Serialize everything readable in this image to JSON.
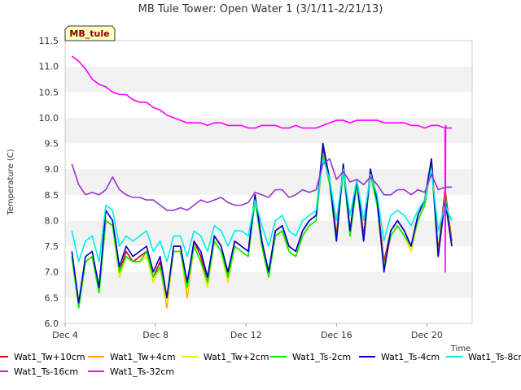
{
  "chart_data": {
    "type": "line",
    "title": "MB Tule Tower: Open Water 1 (3/1/11-2/21/13)",
    "xlabel": "Time",
    "ylabel": "Temperature (C)",
    "badge": "MB_tule",
    "xlim": [
      4,
      22
    ],
    "ylim": [
      6.0,
      11.5
    ],
    "x_ticks": [
      4,
      8,
      12,
      16,
      20
    ],
    "x_tick_labels": [
      "Dec 4",
      "Dec 8",
      "Dec 12",
      "Dec 16",
      "Dec 20"
    ],
    "y_ticks": [
      6.0,
      6.5,
      7.0,
      7.5,
      8.0,
      8.5,
      9.0,
      9.5,
      10.0,
      10.5,
      11.0,
      11.5
    ],
    "y_tick_labels": [
      "6.0",
      "6.5",
      "7.0",
      "7.5",
      "8.0",
      "8.5",
      "9.0",
      "9.5",
      "10.0",
      "10.5",
      "11.0",
      "11.5"
    ],
    "legend_position": "bottom",
    "series": [
      {
        "name": "Wat1_Tw+10cm",
        "color": "#dd0000",
        "x": [
          4.3,
          4.6,
          4.9,
          5.2,
          5.5,
          5.8,
          6.1,
          6.4,
          6.7,
          7.0,
          7.3,
          7.6,
          7.9,
          8.2,
          8.5,
          8.8,
          9.1,
          9.4,
          9.7,
          10.0,
          10.3,
          10.6,
          10.9,
          11.2,
          11.5,
          11.8,
          12.1,
          12.4,
          12.7,
          13.0,
          13.3,
          13.6,
          13.9,
          14.2,
          14.5,
          14.8,
          15.1,
          15.4,
          15.7,
          16.0,
          16.3,
          16.6,
          16.9,
          17.2,
          17.5,
          17.8,
          18.1,
          18.4,
          18.7,
          19.0,
          19.3,
          19.6,
          19.9,
          20.2,
          20.5,
          20.8,
          21.1
        ],
        "values": [
          7.3,
          6.4,
          7.2,
          7.3,
          6.6,
          8.0,
          7.9,
          7.0,
          7.4,
          7.2,
          7.3,
          7.4,
          6.9,
          7.2,
          6.4,
          7.5,
          7.5,
          6.6,
          7.6,
          7.3,
          6.8,
          7.7,
          7.5,
          6.9,
          7.6,
          7.5,
          7.4,
          8.5,
          7.6,
          7.0,
          7.8,
          7.9,
          7.5,
          7.4,
          7.8,
          8.0,
          8.1,
          9.4,
          8.8,
          7.7,
          9.1,
          7.8,
          8.8,
          7.7,
          9.0,
          8.4,
          7.2,
          7.8,
          8.0,
          7.8,
          7.5,
          8.1,
          8.4,
          9.2,
          7.4,
          8.6,
          7.6
        ]
      },
      {
        "name": "Wat1_Tw+4cm",
        "color": "#ffa500",
        "x": [
          4.3,
          4.6,
          4.9,
          5.2,
          5.5,
          5.8,
          6.1,
          6.4,
          6.7,
          7.0,
          7.3,
          7.6,
          7.9,
          8.2,
          8.5,
          8.8,
          9.1,
          9.4,
          9.7,
          10.0,
          10.3,
          10.6,
          10.9,
          11.2,
          11.5,
          11.8,
          12.1,
          12.4,
          12.7,
          13.0,
          13.3,
          13.6,
          13.9,
          14.2,
          14.5,
          14.8,
          15.1,
          15.4,
          15.7,
          16.0,
          16.3,
          16.6,
          16.9,
          17.2,
          17.5,
          17.8,
          18.1,
          18.4,
          18.7,
          19.0,
          19.3,
          19.6,
          19.9,
          20.2,
          20.5,
          20.8,
          21.1
        ],
        "values": [
          7.3,
          6.3,
          7.2,
          7.3,
          6.6,
          8.0,
          7.9,
          6.9,
          7.3,
          7.2,
          7.2,
          7.3,
          6.8,
          7.1,
          6.3,
          7.4,
          7.4,
          6.5,
          7.5,
          7.2,
          6.7,
          7.6,
          7.4,
          6.8,
          7.5,
          7.4,
          7.3,
          8.4,
          7.5,
          6.9,
          7.7,
          7.8,
          7.4,
          7.3,
          7.7,
          7.9,
          8.0,
          9.3,
          8.7,
          7.6,
          9.0,
          7.7,
          8.7,
          7.6,
          8.9,
          8.3,
          7.1,
          7.7,
          7.9,
          7.7,
          7.4,
          8.0,
          8.3,
          9.1,
          7.3,
          8.5,
          7.5
        ]
      },
      {
        "name": "Wat1_Tw+2cm",
        "color": "#eeee00",
        "x": [
          4.3,
          4.6,
          4.9,
          5.2,
          5.5,
          5.8,
          6.1,
          6.4,
          6.7,
          7.0,
          7.3,
          7.6,
          7.9,
          8.2,
          8.5,
          8.8,
          9.1,
          9.4,
          9.7,
          10.0,
          10.3,
          10.6,
          10.9,
          11.2,
          11.5,
          11.8,
          12.1,
          12.4,
          12.7,
          13.0,
          13.3,
          13.6,
          13.9,
          14.2,
          14.5,
          14.8,
          15.1,
          15.4,
          15.7,
          16.0,
          16.3,
          16.6,
          16.9,
          17.2,
          17.5,
          17.8,
          18.1,
          18.4,
          18.7,
          19.0,
          19.3,
          19.6,
          19.9,
          20.2,
          20.5,
          20.8,
          21.1
        ],
        "values": [
          7.3,
          6.3,
          7.2,
          7.3,
          6.6,
          8.0,
          7.9,
          6.9,
          7.3,
          7.2,
          7.2,
          7.3,
          6.8,
          7.1,
          6.4,
          7.4,
          7.4,
          6.6,
          7.5,
          7.2,
          6.7,
          7.6,
          7.4,
          6.8,
          7.5,
          7.4,
          7.3,
          8.4,
          7.5,
          6.9,
          7.7,
          7.8,
          7.4,
          7.3,
          7.7,
          7.9,
          8.0,
          9.3,
          8.7,
          7.6,
          9.0,
          7.7,
          8.7,
          7.6,
          8.9,
          8.3,
          7.1,
          7.7,
          7.9,
          7.7,
          7.4,
          8.0,
          8.3,
          9.1,
          7.3,
          8.5,
          7.5
        ]
      },
      {
        "name": "Wat1_Ts-2cm",
        "color": "#00ee00",
        "x": [
          4.3,
          4.6,
          4.9,
          5.2,
          5.5,
          5.8,
          6.1,
          6.4,
          6.7,
          7.0,
          7.3,
          7.6,
          7.9,
          8.2,
          8.5,
          8.8,
          9.1,
          9.4,
          9.7,
          10.0,
          10.3,
          10.6,
          10.9,
          11.2,
          11.5,
          11.8,
          12.1,
          12.4,
          12.7,
          13.0,
          13.3,
          13.6,
          13.9,
          14.2,
          14.5,
          14.8,
          15.1,
          15.4,
          15.7,
          16.0,
          16.3,
          16.6,
          16.9,
          17.2,
          17.5,
          17.8,
          18.1,
          18.4,
          18.7,
          19.0,
          19.3,
          19.6,
          19.9,
          20.2,
          20.5,
          20.8,
          21.1
        ],
        "values": [
          7.3,
          6.3,
          7.2,
          7.3,
          6.6,
          8.0,
          7.9,
          7.0,
          7.3,
          7.2,
          7.2,
          7.4,
          6.9,
          7.1,
          6.5,
          7.4,
          7.4,
          6.7,
          7.5,
          7.2,
          6.8,
          7.6,
          7.4,
          6.9,
          7.5,
          7.4,
          7.3,
          8.4,
          7.5,
          6.9,
          7.7,
          7.8,
          7.4,
          7.3,
          7.7,
          7.9,
          8.0,
          9.3,
          8.7,
          7.6,
          9.0,
          7.7,
          8.7,
          7.6,
          8.9,
          8.3,
          7.1,
          7.7,
          7.9,
          7.7,
          7.5,
          8.0,
          8.3,
          9.1,
          7.3,
          8.5,
          7.5
        ]
      },
      {
        "name": "Wat1_Ts-4cm",
        "color": "#0000cc",
        "x": [
          4.3,
          4.6,
          4.9,
          5.2,
          5.5,
          5.8,
          6.1,
          6.4,
          6.7,
          7.0,
          7.3,
          7.6,
          7.9,
          8.2,
          8.5,
          8.8,
          9.1,
          9.4,
          9.7,
          10.0,
          10.3,
          10.6,
          10.9,
          11.2,
          11.5,
          11.8,
          12.1,
          12.4,
          12.7,
          13.0,
          13.3,
          13.6,
          13.9,
          14.2,
          14.5,
          14.8,
          15.1,
          15.4,
          15.7,
          16.0,
          16.3,
          16.6,
          16.9,
          17.2,
          17.5,
          17.8,
          18.1,
          18.4,
          18.7,
          19.0,
          19.3,
          19.6,
          19.9,
          20.2,
          20.5,
          20.8,
          21.1
        ],
        "values": [
          7.4,
          6.4,
          7.3,
          7.4,
          6.7,
          8.2,
          8.0,
          7.1,
          7.5,
          7.3,
          7.4,
          7.5,
          7.0,
          7.3,
          6.5,
          7.5,
          7.5,
          6.8,
          7.6,
          7.4,
          6.9,
          7.7,
          7.5,
          7.0,
          7.6,
          7.5,
          7.4,
          8.5,
          7.6,
          7.0,
          7.8,
          7.9,
          7.5,
          7.4,
          7.8,
          8.0,
          8.1,
          9.5,
          8.8,
          7.6,
          9.1,
          7.8,
          8.8,
          7.6,
          9.0,
          8.4,
          7.0,
          7.8,
          8.0,
          7.8,
          7.5,
          8.1,
          8.4,
          9.2,
          7.3,
          8.4,
          7.5
        ]
      },
      {
        "name": "Wat1_Ts-8cm",
        "color": "#00eeee",
        "x": [
          4.3,
          4.6,
          4.9,
          5.2,
          5.5,
          5.8,
          6.1,
          6.4,
          6.7,
          7.0,
          7.3,
          7.6,
          7.9,
          8.2,
          8.5,
          8.8,
          9.1,
          9.4,
          9.7,
          10.0,
          10.3,
          10.6,
          10.9,
          11.2,
          11.5,
          11.8,
          12.1,
          12.4,
          12.7,
          13.0,
          13.3,
          13.6,
          13.9,
          14.2,
          14.5,
          14.8,
          15.1,
          15.4,
          15.7,
          16.0,
          16.3,
          16.6,
          16.9,
          17.2,
          17.5,
          17.8,
          18.1,
          18.4,
          18.7,
          19.0,
          19.3,
          19.6,
          19.9,
          20.2,
          20.5,
          20.8,
          21.1
        ],
        "values": [
          7.8,
          7.2,
          7.6,
          7.7,
          7.2,
          8.3,
          8.2,
          7.5,
          7.7,
          7.6,
          7.7,
          7.8,
          7.4,
          7.6,
          7.2,
          7.7,
          7.7,
          7.3,
          7.8,
          7.7,
          7.4,
          7.9,
          7.8,
          7.5,
          7.8,
          7.8,
          7.7,
          8.4,
          7.9,
          7.5,
          8.0,
          8.1,
          7.8,
          7.7,
          8.0,
          8.1,
          8.2,
          9.2,
          8.8,
          8.0,
          9.0,
          8.1,
          8.8,
          8.0,
          8.9,
          8.5,
          7.6,
          8.1,
          8.2,
          8.1,
          7.9,
          8.2,
          8.4,
          9.0,
          7.8,
          8.3,
          8.0
        ]
      },
      {
        "name": "Wat1_Ts-16cm",
        "color": "#9933cc",
        "x": [
          4.3,
          4.6,
          4.9,
          5.2,
          5.5,
          5.8,
          6.1,
          6.4,
          6.7,
          7.0,
          7.3,
          7.6,
          7.9,
          8.2,
          8.5,
          8.8,
          9.1,
          9.4,
          9.7,
          10.0,
          10.3,
          10.6,
          10.9,
          11.2,
          11.5,
          11.8,
          12.1,
          12.4,
          12.7,
          13.0,
          13.3,
          13.6,
          13.9,
          14.2,
          14.5,
          14.8,
          15.1,
          15.4,
          15.7,
          16.0,
          16.3,
          16.6,
          16.9,
          17.2,
          17.5,
          17.8,
          18.1,
          18.4,
          18.7,
          19.0,
          19.3,
          19.6,
          19.9,
          20.2,
          20.5,
          20.8,
          21.1
        ],
        "values": [
          9.1,
          8.7,
          8.5,
          8.55,
          8.5,
          8.6,
          8.85,
          8.6,
          8.5,
          8.45,
          8.45,
          8.4,
          8.4,
          8.3,
          8.2,
          8.2,
          8.25,
          8.2,
          8.3,
          8.4,
          8.35,
          8.4,
          8.45,
          8.35,
          8.3,
          8.3,
          8.35,
          8.55,
          8.5,
          8.45,
          8.6,
          8.6,
          8.45,
          8.5,
          8.6,
          8.55,
          8.6,
          9.1,
          9.2,
          8.8,
          8.95,
          8.75,
          8.8,
          8.7,
          8.85,
          8.7,
          8.5,
          8.5,
          8.6,
          8.6,
          8.5,
          8.6,
          8.55,
          8.9,
          8.6,
          8.65,
          8.65
        ]
      },
      {
        "name": "Wat1_Ts-32cm",
        "color": "#ff00ff",
        "x": [
          4.3,
          4.6,
          4.9,
          5.2,
          5.5,
          5.8,
          6.1,
          6.4,
          6.7,
          7.0,
          7.3,
          7.6,
          7.9,
          8.2,
          8.5,
          8.8,
          9.1,
          9.4,
          9.7,
          10.0,
          10.3,
          10.6,
          10.9,
          11.2,
          11.5,
          11.8,
          12.1,
          12.4,
          12.7,
          13.0,
          13.3,
          13.6,
          13.9,
          14.2,
          14.5,
          14.8,
          15.1,
          15.4,
          15.7,
          16.0,
          16.3,
          16.6,
          16.9,
          17.2,
          17.5,
          17.8,
          18.1,
          18.4,
          18.7,
          19.0,
          19.3,
          19.6,
          19.9,
          20.2,
          20.5,
          20.8,
          20.81,
          20.83,
          20.85,
          21.1
        ],
        "values": [
          11.2,
          11.1,
          10.95,
          10.75,
          10.65,
          10.6,
          10.5,
          10.45,
          10.45,
          10.35,
          10.3,
          10.3,
          10.2,
          10.15,
          10.05,
          10.0,
          9.95,
          9.9,
          9.9,
          9.9,
          9.85,
          9.9,
          9.9,
          9.85,
          9.85,
          9.85,
          9.8,
          9.8,
          9.85,
          9.85,
          9.85,
          9.8,
          9.8,
          9.85,
          9.8,
          9.8,
          9.8,
          9.85,
          9.9,
          9.95,
          9.95,
          9.9,
          9.95,
          9.95,
          9.95,
          9.95,
          9.9,
          9.9,
          9.9,
          9.9,
          9.85,
          9.85,
          9.8,
          9.85,
          9.85,
          9.8,
          7.0,
          9.85,
          9.8,
          9.8
        ]
      }
    ]
  }
}
